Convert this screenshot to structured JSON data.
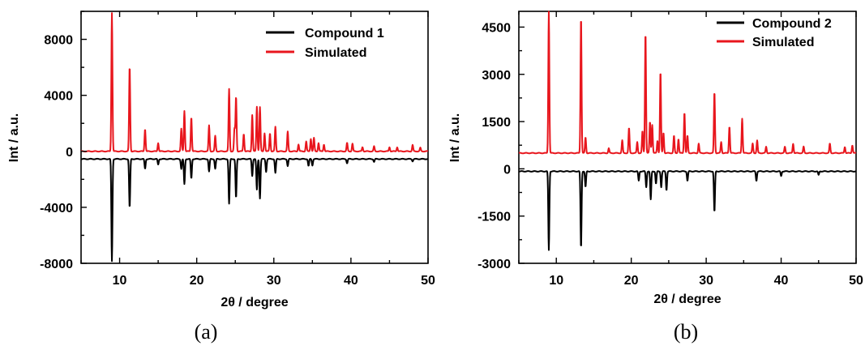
{
  "chart_data": [
    {
      "type": "line",
      "panel_label": "(a)",
      "xlabel": "2θ  / degree",
      "ylabel": "Int / a.u.",
      "xlim": [
        5,
        50
      ],
      "ylim": [
        -8000,
        10000
      ],
      "xticks": [
        10,
        20,
        30,
        40,
        50
      ],
      "yticks": [
        -8000,
        -4000,
        0,
        4000,
        8000
      ],
      "legend_position": "top-right",
      "series": [
        {
          "name": "Compound 1",
          "color": "#000000",
          "baseline": -550,
          "peaks": [
            [
              9.0,
              -7300
            ],
            [
              11.3,
              -3500
            ],
            [
              13.3,
              -700
            ],
            [
              15.0,
              -400
            ],
            [
              18.0,
              -700
            ],
            [
              18.4,
              -1800
            ],
            [
              19.3,
              -1400
            ],
            [
              21.6,
              -900
            ],
            [
              22.4,
              -700
            ],
            [
              24.2,
              -3200
            ],
            [
              25.1,
              -2800
            ],
            [
              27.2,
              -1200
            ],
            [
              27.8,
              -2200
            ],
            [
              28.2,
              -2800
            ],
            [
              29.0,
              -900
            ],
            [
              30.2,
              -1000
            ],
            [
              31.8,
              -500
            ],
            [
              34.5,
              -500
            ],
            [
              35.0,
              -450
            ],
            [
              39.5,
              -300
            ],
            [
              43.0,
              -200
            ],
            [
              48.0,
              -150
            ]
          ]
        },
        {
          "name": "Simulated",
          "color": "#e8161d",
          "baseline": 0,
          "peaks": [
            [
              9.0,
              9900
            ],
            [
              11.3,
              6100
            ],
            [
              13.3,
              1600
            ],
            [
              15.0,
              600
            ],
            [
              18.0,
              1600
            ],
            [
              18.4,
              2900
            ],
            [
              19.3,
              2450
            ],
            [
              21.6,
              1850
            ],
            [
              22.4,
              1100
            ],
            [
              24.2,
              4450
            ],
            [
              24.9,
              1600
            ],
            [
              25.1,
              3900
            ],
            [
              26.1,
              1250
            ],
            [
              27.2,
              2600
            ],
            [
              27.8,
              3200
            ],
            [
              28.2,
              3150
            ],
            [
              28.8,
              1300
            ],
            [
              29.5,
              1300
            ],
            [
              30.2,
              1750
            ],
            [
              31.8,
              1400
            ],
            [
              33.2,
              500
            ],
            [
              34.2,
              700
            ],
            [
              34.8,
              900
            ],
            [
              35.2,
              950
            ],
            [
              35.8,
              600
            ],
            [
              36.5,
              500
            ],
            [
              39.5,
              600
            ],
            [
              40.2,
              550
            ],
            [
              41.5,
              300
            ],
            [
              43.0,
              350
            ],
            [
              45.0,
              300
            ],
            [
              46.0,
              300
            ],
            [
              48.0,
              450
            ],
            [
              49.0,
              250
            ]
          ]
        }
      ],
      "legend": [
        "Compound 1",
        "Simulated"
      ]
    },
    {
      "type": "line",
      "panel_label": "(b)",
      "xlabel": "2θ  / degree",
      "ylabel": "Int / a.u.",
      "xlim": [
        5,
        50
      ],
      "ylim": [
        -3000,
        5000
      ],
      "xticks": [
        10,
        20,
        30,
        40,
        50
      ],
      "yticks": [
        -3000,
        -1500,
        0,
        1500,
        3000,
        4500
      ],
      "legend_position": "top-right",
      "series": [
        {
          "name": "Compound 2",
          "color": "#000000",
          "baseline": -80,
          "peaks": [
            [
              9.0,
              -2500
            ],
            [
              13.3,
              -2450
            ],
            [
              13.9,
              -500
            ],
            [
              21.0,
              -300
            ],
            [
              22.0,
              -500
            ],
            [
              22.6,
              -900
            ],
            [
              23.3,
              -400
            ],
            [
              24.0,
              -500
            ],
            [
              24.7,
              -600
            ],
            [
              27.5,
              -300
            ],
            [
              31.1,
              -1300
            ],
            [
              36.7,
              -300
            ],
            [
              40.0,
              -150
            ],
            [
              45.0,
              -120
            ]
          ]
        },
        {
          "name": "Simulated",
          "color": "#e8161d",
          "baseline": 500,
          "peaks": [
            [
              9.0,
              4500
            ],
            [
              13.3,
              4350
            ],
            [
              13.9,
              500
            ],
            [
              17.0,
              150
            ],
            [
              18.8,
              400
            ],
            [
              19.7,
              800
            ],
            [
              20.8,
              350
            ],
            [
              21.5,
              700
            ],
            [
              21.9,
              3850
            ],
            [
              22.5,
              1000
            ],
            [
              22.8,
              900
            ],
            [
              23.5,
              400
            ],
            [
              23.9,
              2600
            ],
            [
              24.3,
              650
            ],
            [
              25.7,
              550
            ],
            [
              26.3,
              450
            ],
            [
              27.1,
              1300
            ],
            [
              27.5,
              550
            ],
            [
              29.0,
              300
            ],
            [
              31.1,
              1950
            ],
            [
              32.0,
              350
            ],
            [
              33.1,
              850
            ],
            [
              34.8,
              1100
            ],
            [
              36.2,
              300
            ],
            [
              36.8,
              400
            ],
            [
              38.0,
              200
            ],
            [
              40.5,
              200
            ],
            [
              41.6,
              300
            ],
            [
              43.0,
              200
            ],
            [
              46.5,
              300
            ],
            [
              48.5,
              200
            ],
            [
              49.5,
              250
            ]
          ]
        }
      ],
      "legend": [
        "Compound 2",
        "Simulated"
      ]
    }
  ]
}
